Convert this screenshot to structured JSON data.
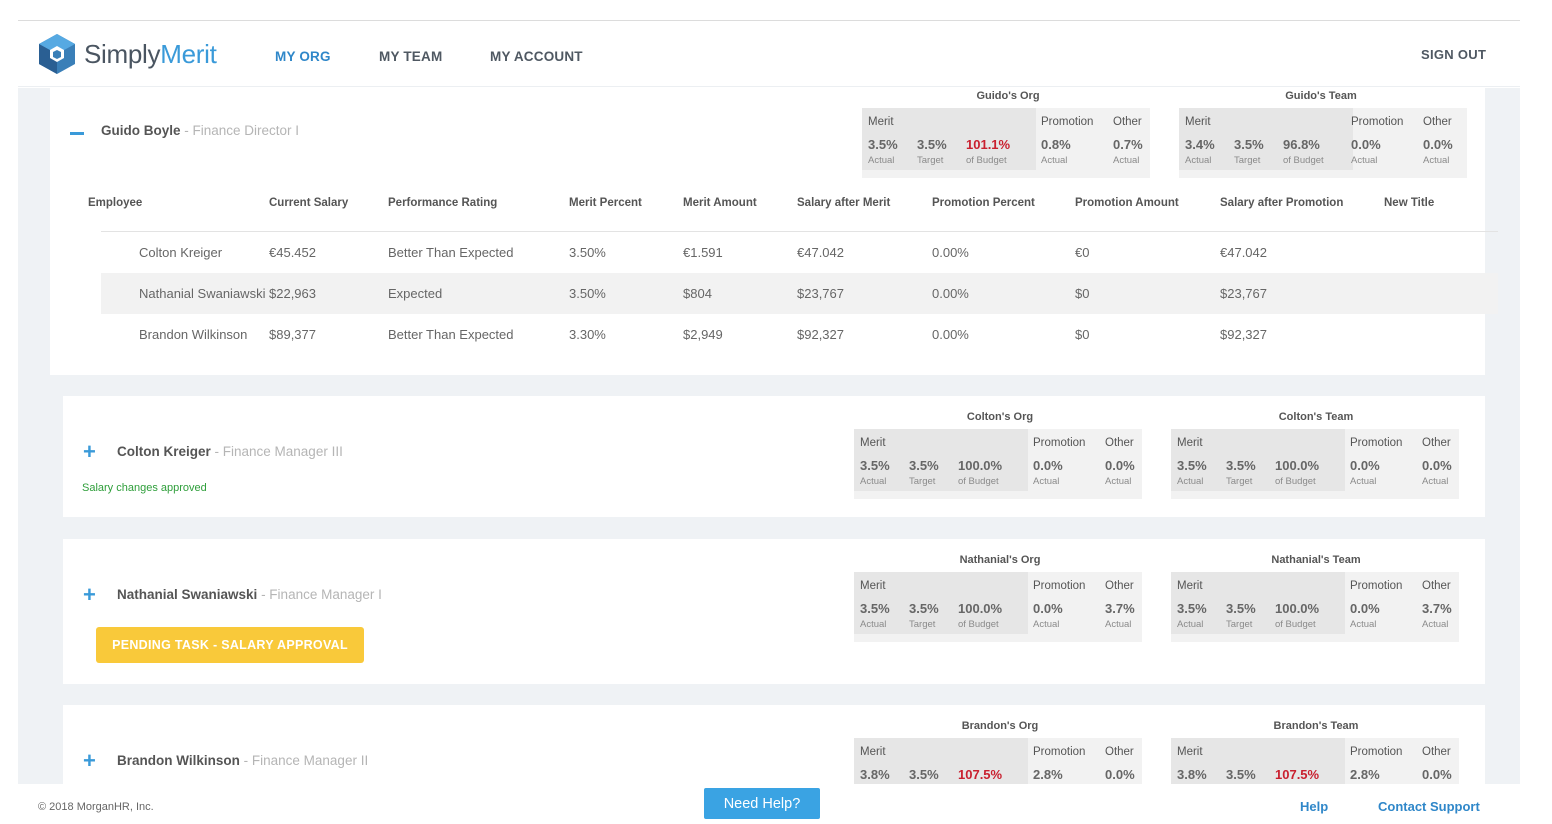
{
  "app": {
    "name_part1": "Simply",
    "name_part2": "Merit"
  },
  "nav": {
    "my_org": "MY ORG",
    "my_team": "MY TEAM",
    "my_account": "MY ACCOUNT",
    "sign_out": "SIGN OUT"
  },
  "labels": {
    "merit": "Merit",
    "promotion": "Promotion",
    "other": "Other",
    "actual": "Actual",
    "target": "Target",
    "of_budget": "of Budget"
  },
  "managers": [
    {
      "name": "Guido Boyle",
      "role": " - Finance Director I",
      "org_title": "Guido's Org",
      "team_title": "Guido's Team",
      "org": {
        "merit_actual": "3.5%",
        "merit_target": "3.5%",
        "budget": "101.1%",
        "promotion": "0.8%",
        "other": "0.7%"
      },
      "team": {
        "merit_actual": "3.4%",
        "merit_target": "3.5%",
        "budget": "96.8%",
        "promotion": "0.0%",
        "other": "0.0%"
      }
    },
    {
      "name": "Colton Kreiger",
      "role": " - Finance Manager III",
      "status": "Salary changes approved",
      "org_title": "Colton's Org",
      "team_title": "Colton's Team",
      "org": {
        "merit_actual": "3.5%",
        "merit_target": "3.5%",
        "budget": "100.0%",
        "promotion": "0.0%",
        "other": "0.0%"
      },
      "team": {
        "merit_actual": "3.5%",
        "merit_target": "3.5%",
        "budget": "100.0%",
        "promotion": "0.0%",
        "other": "0.0%"
      }
    },
    {
      "name": "Nathanial Swaniawski",
      "role": " - Finance Manager I",
      "pending": "PENDING TASK - SALARY APPROVAL",
      "org_title": "Nathanial's Org",
      "team_title": "Nathanial's Team",
      "org": {
        "merit_actual": "3.5%",
        "merit_target": "3.5%",
        "budget": "100.0%",
        "promotion": "0.0%",
        "other": "3.7%"
      },
      "team": {
        "merit_actual": "3.5%",
        "merit_target": "3.5%",
        "budget": "100.0%",
        "promotion": "0.0%",
        "other": "3.7%"
      }
    },
    {
      "name": "Brandon Wilkinson",
      "role": " - Finance Manager II",
      "org_title": "Brandon's Org",
      "team_title": "Brandon's Team",
      "org": {
        "merit_actual": "3.8%",
        "merit_target": "3.5%",
        "budget": "107.5%",
        "promotion": "2.8%",
        "other": "0.0%"
      },
      "team": {
        "merit_actual": "3.8%",
        "merit_target": "3.5%",
        "budget": "107.5%",
        "promotion": "2.8%",
        "other": "0.0%"
      }
    }
  ],
  "table": {
    "headers": [
      "Employee",
      "Current Salary",
      "Performance Rating",
      "Merit Percent",
      "Merit Amount",
      "Salary after Merit",
      "Promotion Percent",
      "Promotion Amount",
      "Salary after Promotion",
      "New Title"
    ],
    "rows": [
      [
        "Colton Kreiger",
        "€45.452",
        "Better Than Expected",
        "3.50%",
        "€1.591",
        "€47.042",
        "0.00%",
        "€0",
        "€47.042"
      ],
      [
        "Nathanial Swaniawski",
        "$22,963",
        "Expected",
        "3.50%",
        "$804",
        "$23,767",
        "0.00%",
        "$0",
        "$23,767"
      ],
      [
        "Brandon Wilkinson",
        "$89,377",
        "Better Than Expected",
        "3.30%",
        "$2,949",
        "$92,327",
        "0.00%",
        "$0",
        "$92,327"
      ]
    ]
  },
  "colors": {
    "accent": "#3a9ad9",
    "over_budget": "#c9202f",
    "approved": "#2e9e3a",
    "pending": "#f9c93a"
  },
  "footer": {
    "copyright": "© 2018 MorganHR, Inc.",
    "need_help": "Need Help?",
    "help": "Help",
    "contact": "Contact Support"
  }
}
